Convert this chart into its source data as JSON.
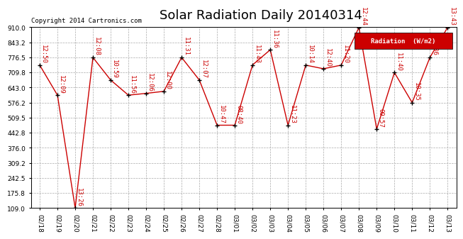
{
  "title": "Solar Radiation Daily 20140314",
  "copyright": "Copyright 2014 Cartronics.com",
  "legend_label": "Radiation  (W/m2)",
  "dates": [
    "02/18",
    "02/19",
    "02/20",
    "02/21",
    "02/22",
    "02/23",
    "02/24",
    "02/25",
    "02/26",
    "02/27",
    "02/28",
    "03/01",
    "03/02",
    "03/03",
    "03/04",
    "03/05",
    "03/06",
    "03/07",
    "03/08",
    "03/09",
    "03/10",
    "03/11",
    "03/12",
    "03/13"
  ],
  "values": [
    742,
    609,
    109,
    776,
    676,
    609,
    617,
    626,
    776,
    676,
    476,
    476,
    743,
    810,
    476,
    742,
    726,
    742,
    909,
    459,
    709,
    576,
    776,
    909
  ],
  "time_labels": [
    "12:50",
    "12:09",
    "13:26",
    "12:08",
    "10:59",
    "11:56",
    "12:06",
    "12:00",
    "11:31",
    "12:07",
    "10:47",
    "08:40",
    "11:43",
    "11:36",
    "11:23",
    "10:14",
    "12:40",
    "11:20",
    "12:44",
    "09:57",
    "11:40",
    "10:35",
    "11:36",
    "13:43"
  ],
  "ylim": [
    109.0,
    910.0
  ],
  "yticks": [
    109.0,
    175.8,
    242.5,
    309.2,
    376.0,
    442.8,
    509.5,
    576.2,
    643.0,
    709.8,
    776.5,
    843.2,
    910.0
  ],
  "line_color": "#cc0000",
  "marker_color": "#000000",
  "bg_color": "#ffffff",
  "grid_color": "#aaaaaa",
  "title_fontsize": 13,
  "tick_fontsize": 6.5,
  "time_label_fontsize": 6.5,
  "legend_bg": "#cc0000",
  "legend_fg": "#ffffff"
}
